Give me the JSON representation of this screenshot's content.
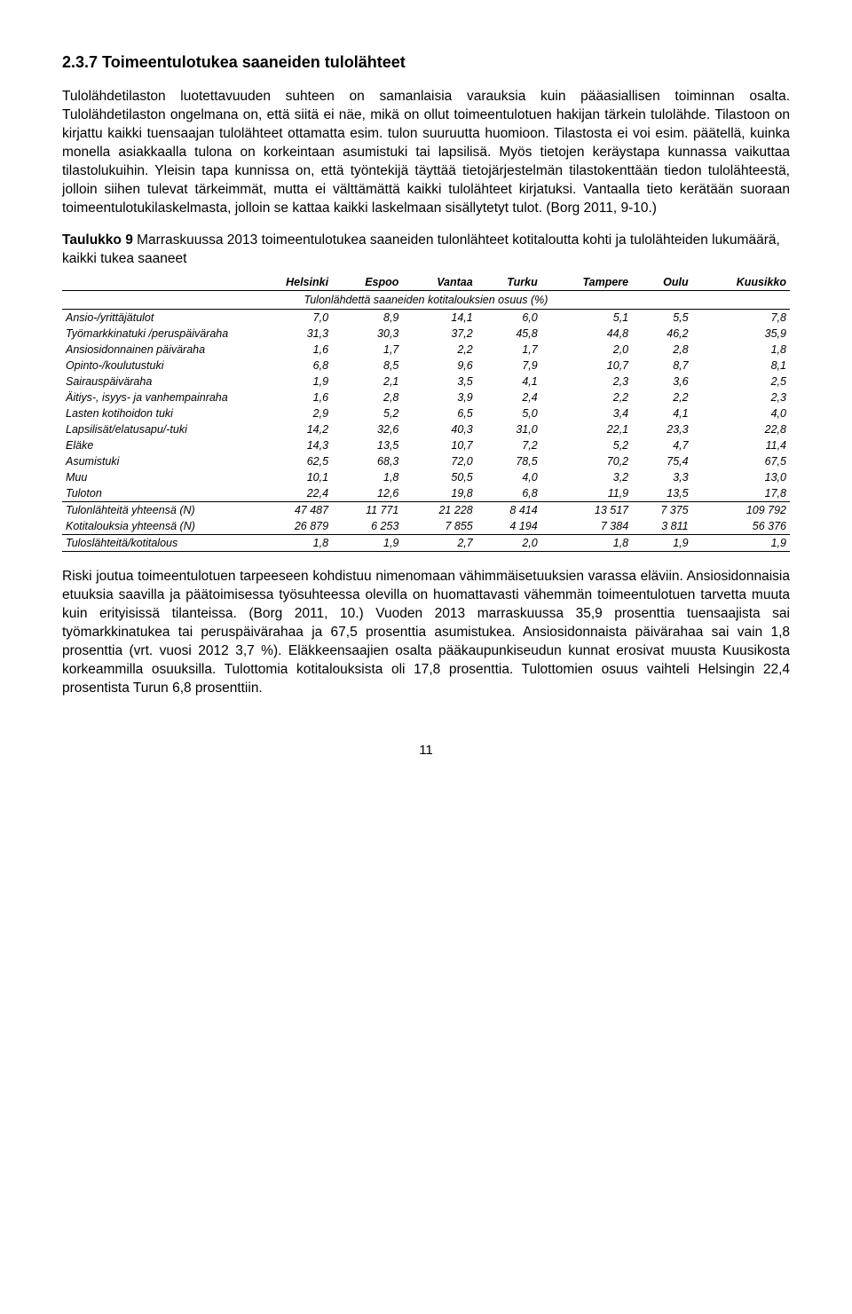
{
  "heading": "2.3.7   Toimeentulotukea saaneiden tulolähteet",
  "para1": "Tulolähdetilaston luotettavuuden suhteen on samanlaisia varauksia kuin pääasiallisen toiminnan osalta. Tulolähdetilaston ongelmana on, että siitä ei näe, mikä on ollut toimeentulotuen hakijan tärkein tulolähde. Tilastoon on kirjattu kaikki tuensaajan tulolähteet ottamatta esim. tulon suuruutta huomioon. Tilastosta ei voi esim. päätellä, kuinka monella asiakkaalla tulona on korkeintaan asumistuki tai lapsilisä. Myös tietojen keräystapa kunnassa vaikuttaa tilastolukuihin. Yleisin tapa kunnissa on, että työntekijä täyttää tietojärjestelmän tilastokenttään tiedon tulolähteestä, jolloin siihen tulevat tärkeimmät, mutta ei välttämättä kaikki tulolähteet kirjatuksi. Vantaalla tieto kerätään suoraan toimeentulotukilaskelmasta, jolloin se kattaa kaikki laskelmaan sisällytetyt tulot. (Borg 2011, 9-10.)",
  "tableTitle": {
    "bold": "Taulukko 9",
    "rest": " Marraskuussa 2013 toimeentulotukea saaneiden tulonlähteet kotitaloutta kohti ja tulolähteiden lukumäärä, kaikki tukea saaneet"
  },
  "table": {
    "columns": [
      "",
      "Helsinki",
      "Espoo",
      "Vantaa",
      "Turku",
      "Tampere",
      "Oulu",
      "Kuusikko"
    ],
    "subheader": "Tulonlähdettä saaneiden kotitalouksien osuus (%)",
    "rows": [
      [
        "Ansio-/yrittäjätulot",
        "7,0",
        "8,9",
        "14,1",
        "6,0",
        "5,1",
        "5,5",
        "7,8"
      ],
      [
        "Työmarkkinatuki /peruspäiväraha",
        "31,3",
        "30,3",
        "37,2",
        "45,8",
        "44,8",
        "46,2",
        "35,9"
      ],
      [
        "Ansiosidonnainen päiväraha",
        "1,6",
        "1,7",
        "2,2",
        "1,7",
        "2,0",
        "2,8",
        "1,8"
      ],
      [
        "Opinto-/koulutustuki",
        "6,8",
        "8,5",
        "9,6",
        "7,9",
        "10,7",
        "8,7",
        "8,1"
      ],
      [
        "Sairauspäiväraha",
        "1,9",
        "2,1",
        "3,5",
        "4,1",
        "2,3",
        "3,6",
        "2,5"
      ],
      [
        "Äitiys-, isyys- ja vanhempainraha",
        "1,6",
        "2,8",
        "3,9",
        "2,4",
        "2,2",
        "2,2",
        "2,3"
      ],
      [
        "Lasten kotihoidon tuki",
        "2,9",
        "5,2",
        "6,5",
        "5,0",
        "3,4",
        "4,1",
        "4,0"
      ],
      [
        "Lapsilisät/elatusapu/-tuki",
        "14,2",
        "32,6",
        "40,3",
        "31,0",
        "22,1",
        "23,3",
        "22,8"
      ],
      [
        "Eläke",
        "14,3",
        "13,5",
        "10,7",
        "7,2",
        "5,2",
        "4,7",
        "11,4"
      ],
      [
        "Asumistuki",
        "62,5",
        "68,3",
        "72,0",
        "78,5",
        "70,2",
        "75,4",
        "67,5"
      ],
      [
        "Muu",
        "10,1",
        "1,8",
        "50,5",
        "4,0",
        "3,2",
        "3,3",
        "13,0"
      ],
      [
        "Tuloton",
        "22,4",
        "12,6",
        "19,8",
        "6,8",
        "11,9",
        "13,5",
        "17,8"
      ]
    ],
    "sumRows": [
      [
        "Tulonlähteitä yhteensä (N)",
        "47 487",
        "11 771",
        "21 228",
        "8 414",
        "13 517",
        "7 375",
        "109 792"
      ],
      [
        "Kotitalouksia yhteensä (N)",
        "26 879",
        "6 253",
        "7 855",
        "4 194",
        "7 384",
        "3 811",
        "56 376"
      ]
    ],
    "lastRow": [
      "Tuloslähteitä/kotitalous",
      "1,8",
      "1,9",
      "2,7",
      "2,0",
      "1,8",
      "1,9",
      "1,9"
    ]
  },
  "para2": "Riski joutua toimeentulotuen tarpeeseen kohdistuu nimenomaan vähimmäisetuuksien varassa eläviin. Ansiosidonnaisia etuuksia saavilla ja päätoimisessa työsuhteessa olevilla on huomattavasti vähemmän toimeentulotuen tarvetta muuta kuin erityisissä tilanteissa. (Borg 2011, 10.) Vuoden 2013 marraskuussa 35,9 prosenttia tuensaajista sai työmarkkinatukea tai peruspäivärahaa ja 67,5 prosenttia asumistukea. Ansiosidonnaista päivärahaa sai vain 1,8 prosenttia (vrt. vuosi 2012 3,7 %). Eläkkeensaajien osalta pääkaupunkiseudun kunnat erosivat muusta Kuusikosta korkeammilla osuuksilla. Tulottomia kotitalouksista oli 17,8 prosenttia. Tulottomien osuus vaihteli Helsingin 22,4 prosentista Turun 6,8 prosenttiin.",
  "pageNum": "11"
}
